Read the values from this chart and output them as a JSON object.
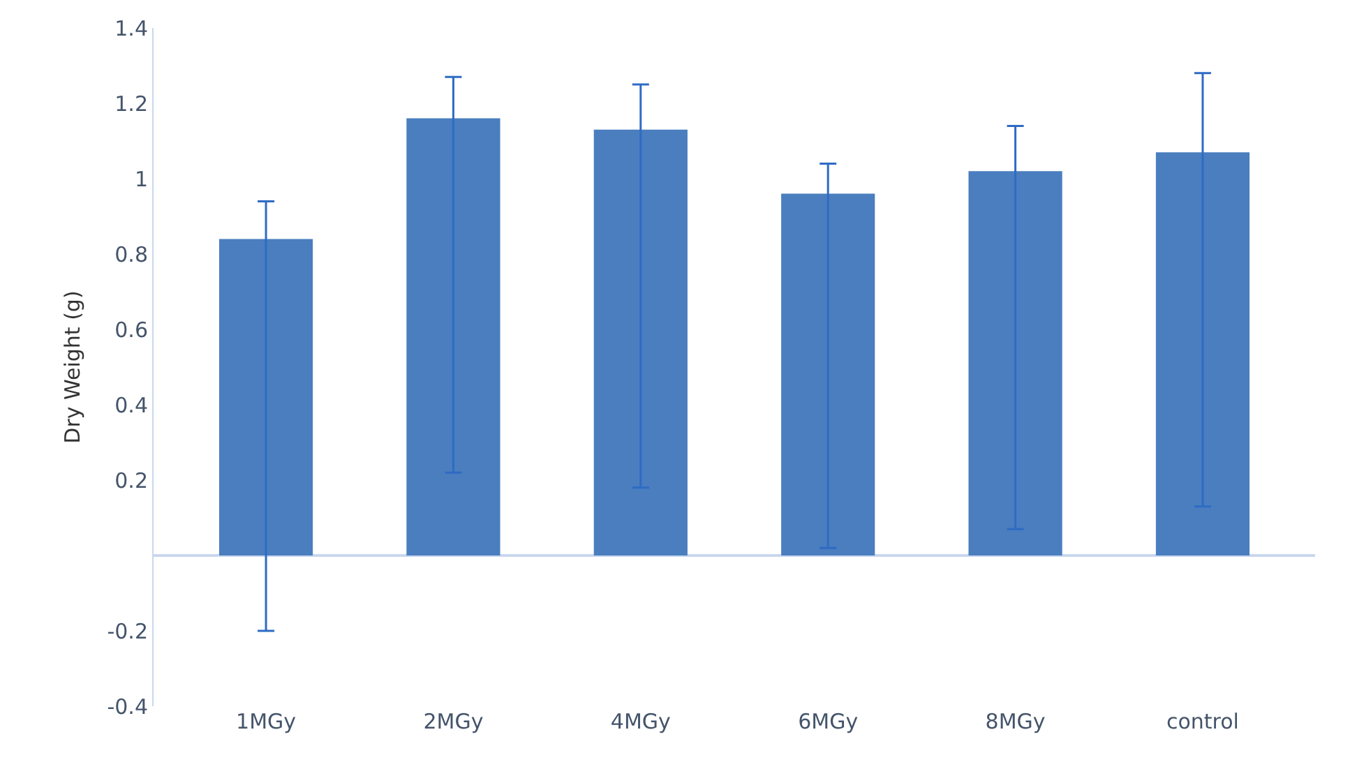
{
  "chart_data": {
    "type": "bar",
    "ylabel": "Dry Weight (g)",
    "categories": [
      "1MGy",
      "2MGy",
      "4MGy",
      "6MGy",
      "8MGy",
      "control"
    ],
    "values": [
      0.84,
      1.16,
      1.13,
      0.96,
      1.02,
      1.07
    ],
    "errors": [
      [
        -0.2,
        0.94
      ],
      [
        0.22,
        1.27
      ],
      [
        0.18,
        1.25
      ],
      [
        0.02,
        1.04
      ],
      [
        0.07,
        1.14
      ],
      [
        0.13,
        1.28
      ]
    ],
    "color": "#4a7ebf",
    "ylim": [
      -0.4,
      1.4
    ],
    "yticks": [
      -0.4,
      -0.2,
      0.2,
      0.4,
      0.6,
      0.8,
      1,
      1.2,
      1.4
    ],
    "legend": false
  }
}
